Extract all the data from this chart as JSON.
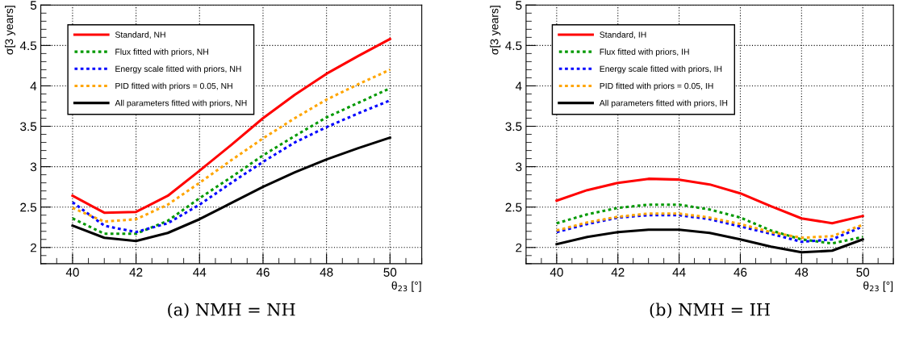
{
  "chart_data": [
    {
      "type": "line",
      "xlabel": "θ$_{23}$ [°]",
      "ylabel": "σ[3 years]",
      "x": [
        40,
        41,
        42,
        43,
        44,
        45,
        46,
        47,
        48,
        49,
        50
      ],
      "xlim": [
        39,
        51
      ],
      "ylim": [
        1.8,
        5
      ],
      "xticks": [
        40,
        42,
        44,
        46,
        48,
        50
      ],
      "yticks": [
        2,
        2.5,
        3,
        3.5,
        4,
        4.5,
        5
      ],
      "grid": true,
      "legend": "top left",
      "annotations": [
        "(a) NMH = NH"
      ],
      "series": [
        {
          "name": "Standard, NH",
          "color": "#ff0000",
          "line_style": "solid",
          "values": [
            2.64,
            2.43,
            2.44,
            2.64,
            2.95,
            3.27,
            3.6,
            3.89,
            4.15,
            4.37,
            4.58
          ]
        },
        {
          "name": "Flux fitted with priors, NH",
          "color": "#009900",
          "line_style": "dotted",
          "values": [
            2.36,
            2.17,
            2.17,
            2.33,
            2.61,
            2.87,
            3.14,
            3.38,
            3.61,
            3.79,
            3.97
          ]
        },
        {
          "name": "Energy scale fitted with priors, NH",
          "color": "#0000ff",
          "line_style": "dotted",
          "values": [
            2.56,
            2.27,
            2.19,
            2.3,
            2.53,
            2.8,
            3.06,
            3.3,
            3.49,
            3.66,
            3.82
          ]
        },
        {
          "name": "PID fitted with priors = 0.05, NH",
          "color": "#ffa500",
          "line_style": "dotted",
          "values": [
            2.49,
            2.32,
            2.35,
            2.53,
            2.8,
            3.08,
            3.35,
            3.6,
            3.83,
            4.02,
            4.2
          ]
        },
        {
          "name": "All parameters fitted with priors, NH",
          "color": "#000000",
          "line_style": "solid",
          "values": [
            2.27,
            2.12,
            2.08,
            2.18,
            2.35,
            2.55,
            2.75,
            2.93,
            3.09,
            3.23,
            3.36
          ]
        }
      ]
    },
    {
      "type": "line",
      "xlabel": "θ$_{23}$ [°]",
      "ylabel": "σ[3 years]",
      "x": [
        40,
        41,
        42,
        43,
        44,
        45,
        46,
        47,
        48,
        49,
        50
      ],
      "xlim": [
        39,
        51
      ],
      "ylim": [
        1.8,
        5
      ],
      "xticks": [
        40,
        42,
        44,
        46,
        48,
        50
      ],
      "yticks": [
        2,
        2.5,
        3,
        3.5,
        4,
        4.5,
        5
      ],
      "grid": true,
      "legend": "top left",
      "annotations": [
        "(b) NMH = IH"
      ],
      "series": [
        {
          "name": "Standard, IH",
          "color": "#ff0000",
          "line_style": "solid",
          "values": [
            2.58,
            2.71,
            2.8,
            2.85,
            2.84,
            2.78,
            2.67,
            2.51,
            2.36,
            2.3,
            2.39
          ]
        },
        {
          "name": "Flux fitted with priors, IH",
          "color": "#009900",
          "line_style": "dotted",
          "values": [
            2.3,
            2.41,
            2.49,
            2.53,
            2.53,
            2.47,
            2.37,
            2.21,
            2.1,
            2.05,
            2.13
          ]
        },
        {
          "name": "Energy scale fitted with priors, IH",
          "color": "#0000ff",
          "line_style": "dotted",
          "values": [
            2.19,
            2.29,
            2.37,
            2.4,
            2.4,
            2.35,
            2.26,
            2.17,
            2.07,
            2.1,
            2.26
          ]
        },
        {
          "name": "PID fitted with priors = 0.05, IH",
          "color": "#ffa500",
          "line_style": "dotted",
          "values": [
            2.21,
            2.31,
            2.38,
            2.42,
            2.42,
            2.37,
            2.29,
            2.19,
            2.12,
            2.14,
            2.28
          ]
        },
        {
          "name": "All parameters fitted with priors, IH",
          "color": "#000000",
          "line_style": "solid",
          "values": [
            2.04,
            2.13,
            2.19,
            2.22,
            2.22,
            2.18,
            2.1,
            2.01,
            1.94,
            1.96,
            2.1
          ]
        }
      ]
    }
  ]
}
